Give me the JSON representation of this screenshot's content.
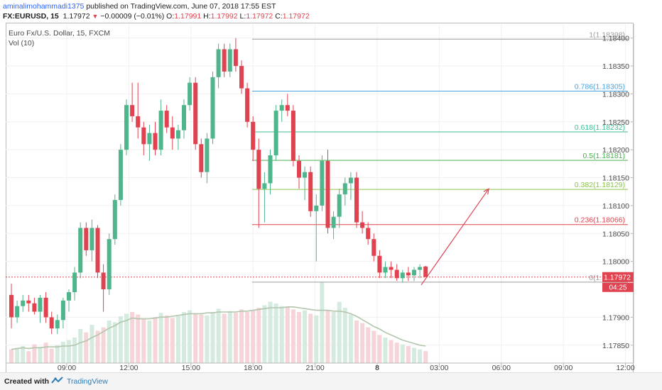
{
  "header": {
    "author": "aminalimohammadi1375",
    "published": " published on TradingView.com, June 07, 2018 17:55 EST",
    "symbol": "FX:EURUSD, 15",
    "last": "1.17972",
    "change": "−0.00009 (−0.01%)",
    "o_label": "O:",
    "o_val": "1.17991",
    "h_label": "H:",
    "h_val": "1.17992",
    "l_label": "L:",
    "l_val": "1.17972",
    "c_label": "C:",
    "c_val": "1.17972"
  },
  "legend": {
    "title": "Euro Fx/U.S. Dollar, 15, FXCM",
    "indicator": "Vol (10)"
  },
  "footer": {
    "created_with": "Created with",
    "brand": "TradingView"
  },
  "colors": {
    "up": "#4fb58a",
    "down": "#e0424f",
    "vol_up": "#d6ebdf",
    "vol_down": "#f6d5d8",
    "vol_ma": "#b3c5ad",
    "price_line": "#e0424f",
    "arrow": "#e0424f",
    "axis_text": "#4a4a4a",
    "grid": "#f0f0f0"
  },
  "chart_data": {
    "type": "candlestick",
    "title": "Euro Fx/U.S. Dollar, 15, FXCM",
    "y_axis": {
      "range": [
        1.17818,
        1.18425
      ],
      "ticks": [
        "1.18400",
        "1.18350",
        "1.18300",
        "1.18250",
        "1.18200",
        "1.18150",
        "1.18100",
        "1.18050",
        "1.18000",
        "1.17900",
        "1.17850"
      ]
    },
    "x_axis": {
      "ticks": [
        "09:00",
        "12:00",
        "15:00",
        "18:00",
        "21:00",
        "8",
        "03:00",
        "06:00",
        "09:00",
        "12:00"
      ]
    },
    "current_price": {
      "label": "1.17972",
      "value": 1.17972,
      "countdown": "04:25"
    },
    "fibonacci": [
      {
        "ratio": "1",
        "price": "1.18398",
        "label": "1(1.18398)",
        "color": "#9e9e9e"
      },
      {
        "ratio": "0.786",
        "price": "1.18305",
        "label": "0.786(1.18305)",
        "color": "#4aa3df"
      },
      {
        "ratio": "0.618",
        "price": "1.18232",
        "label": "0.618(1.18232)",
        "color": "#3fbf95"
      },
      {
        "ratio": "0.5",
        "price": "1.18181",
        "label": "0.5(1.18181)",
        "color": "#4caf50"
      },
      {
        "ratio": "0.382",
        "price": "1.18129",
        "label": "0.382(1.18129)",
        "color": "#8bc34a"
      },
      {
        "ratio": "0.236",
        "price": "1.18066",
        "label": "0.236(1.18066)",
        "color": "#e0424f"
      },
      {
        "ratio": "0",
        "price": "1.17963",
        "label": "0(1.17963)",
        "color": "#9e9e9e"
      }
    ],
    "candles": [
      [
        1.1794,
        1.1796,
        1.1788,
        1.179
      ],
      [
        1.179,
        1.1793,
        1.1789,
        1.1792
      ],
      [
        1.1792,
        1.1794,
        1.1791,
        1.1793
      ],
      [
        1.1793,
        1.1794,
        1.1791,
        1.17925
      ],
      [
        1.17925,
        1.17935,
        1.17905,
        1.1791
      ],
      [
        1.1791,
        1.1794,
        1.1789,
        1.17935
      ],
      [
        1.17935,
        1.17945,
        1.1789,
        1.179
      ],
      [
        1.179,
        1.1791,
        1.1787,
        1.1788
      ],
      [
        1.1788,
        1.17905,
        1.1787,
        1.17895
      ],
      [
        1.17895,
        1.17935,
        1.1788,
        1.1793
      ],
      [
        1.1793,
        1.1795,
        1.1791,
        1.17945
      ],
      [
        1.17945,
        1.1799,
        1.1793,
        1.1798
      ],
      [
        1.1798,
        1.1807,
        1.1797,
        1.1806
      ],
      [
        1.1806,
        1.1807,
        1.1801,
        1.1802
      ],
      [
        1.1802,
        1.18075,
        1.18,
        1.1806
      ],
      [
        1.1806,
        1.18065,
        1.1797,
        1.1798
      ],
      [
        1.1798,
        1.17995,
        1.1791,
        1.1795
      ],
      [
        1.1795,
        1.1805,
        1.1794,
        1.1804
      ],
      [
        1.1804,
        1.1812,
        1.1803,
        1.1811
      ],
      [
        1.1811,
        1.1821,
        1.181,
        1.182
      ],
      [
        1.182,
        1.1829,
        1.1819,
        1.1828
      ],
      [
        1.1828,
        1.1832,
        1.1825,
        1.1826
      ],
      [
        1.1826,
        1.1832,
        1.1822,
        1.1824
      ],
      [
        1.1824,
        1.1825,
        1.1819,
        1.1821
      ],
      [
        1.1821,
        1.18245,
        1.1818,
        1.1823
      ],
      [
        1.1823,
        1.1825,
        1.1819,
        1.182
      ],
      [
        1.182,
        1.1829,
        1.1819,
        1.1827
      ],
      [
        1.1827,
        1.1828,
        1.1823,
        1.1824
      ],
      [
        1.1824,
        1.1826,
        1.182,
        1.1822
      ],
      [
        1.1822,
        1.18245,
        1.182,
        1.18235
      ],
      [
        1.18235,
        1.1829,
        1.1822,
        1.1828
      ],
      [
        1.1828,
        1.1833,
        1.1827,
        1.1832
      ],
      [
        1.1832,
        1.1833,
        1.182,
        1.1821
      ],
      [
        1.1821,
        1.1822,
        1.1815,
        1.1816
      ],
      [
        1.1816,
        1.1823,
        1.1814,
        1.1822
      ],
      [
        1.1822,
        1.1834,
        1.1821,
        1.1833
      ],
      [
        1.1833,
        1.1839,
        1.1831,
        1.1838
      ],
      [
        1.1838,
        1.1839,
        1.1833,
        1.1834
      ],
      [
        1.1834,
        1.1839,
        1.1833,
        1.1838
      ],
      [
        1.1838,
        1.184,
        1.1834,
        1.1835
      ],
      [
        1.1835,
        1.1836,
        1.183,
        1.1831
      ],
      [
        1.1831,
        1.1832,
        1.1824,
        1.1825
      ],
      [
        1.1825,
        1.1826,
        1.1818,
        1.182
      ],
      [
        1.182,
        1.1822,
        1.1806,
        1.1813
      ],
      [
        1.1813,
        1.1816,
        1.1807,
        1.1814
      ],
      [
        1.1814,
        1.182,
        1.1812,
        1.1819
      ],
      [
        1.1819,
        1.1828,
        1.1818,
        1.1827
      ],
      [
        1.1827,
        1.1829,
        1.1825,
        1.1828
      ],
      [
        1.1828,
        1.183,
        1.1826,
        1.1827
      ],
      [
        1.1827,
        1.1828,
        1.1817,
        1.1818
      ],
      [
        1.1818,
        1.1819,
        1.1813,
        1.1815
      ],
      [
        1.1815,
        1.1817,
        1.1811,
        1.1816
      ],
      [
        1.1816,
        1.1817,
        1.1808,
        1.1809
      ],
      [
        1.1809,
        1.1812,
        1.18,
        1.181
      ],
      [
        1.181,
        1.1819,
        1.1809,
        1.1818
      ],
      [
        1.1818,
        1.182,
        1.1805,
        1.1806
      ],
      [
        1.1806,
        1.1809,
        1.1804,
        1.1808
      ],
      [
        1.1808,
        1.1813,
        1.1806,
        1.1812
      ],
      [
        1.1812,
        1.1815,
        1.181,
        1.1814
      ],
      [
        1.1814,
        1.1816,
        1.1811,
        1.1815
      ],
      [
        1.1815,
        1.1816,
        1.1806,
        1.1807
      ],
      [
        1.1807,
        1.1809,
        1.1805,
        1.1806
      ],
      [
        1.1806,
        1.1807,
        1.1803,
        1.1804
      ],
      [
        1.1804,
        1.1805,
        1.18,
        1.1801
      ],
      [
        1.1801,
        1.1802,
        1.1797,
        1.1798
      ],
      [
        1.1798,
        1.18,
        1.1797,
        1.1799
      ],
      [
        1.1799,
        1.18,
        1.1797,
        1.17985
      ],
      [
        1.17985,
        1.17995,
        1.17965,
        1.1797
      ],
      [
        1.1797,
        1.17985,
        1.17962,
        1.1798
      ],
      [
        1.1798,
        1.1799,
        1.17965,
        1.17975
      ],
      [
        1.17975,
        1.1799,
        1.17965,
        1.17985
      ],
      [
        1.17985,
        1.17995,
        1.1797,
        1.1799
      ],
      [
        1.17991,
        1.17992,
        1.17972,
        1.17972
      ]
    ],
    "volumes": [
      0.16,
      0.18,
      0.2,
      0.14,
      0.22,
      0.19,
      0.24,
      0.17,
      0.21,
      0.25,
      0.27,
      0.3,
      0.4,
      0.36,
      0.45,
      0.38,
      0.42,
      0.5,
      0.48,
      0.55,
      0.58,
      0.6,
      0.57,
      0.52,
      0.5,
      0.54,
      0.59,
      0.56,
      0.53,
      0.55,
      0.6,
      0.62,
      0.58,
      0.57,
      0.56,
      0.6,
      0.64,
      0.58,
      0.61,
      0.59,
      0.63,
      0.6,
      0.62,
      0.65,
      0.68,
      0.72,
      0.7,
      0.67,
      0.66,
      0.63,
      0.6,
      0.62,
      0.58,
      0.56,
      0.95,
      0.62,
      0.6,
      0.72,
      0.65,
      0.57,
      0.5,
      0.47,
      0.42,
      0.38,
      0.33,
      0.3,
      0.27,
      0.24,
      0.22,
      0.2,
      0.18,
      0.16,
      0.14
    ],
    "volume_ma": [
      0.16,
      0.17,
      0.18,
      0.17,
      0.18,
      0.18,
      0.19,
      0.19,
      0.19,
      0.2,
      0.2,
      0.21,
      0.24,
      0.26,
      0.3,
      0.33,
      0.37,
      0.41,
      0.44,
      0.48,
      0.5,
      0.53,
      0.52,
      0.52,
      0.52,
      0.53,
      0.54,
      0.54,
      0.55,
      0.56,
      0.57,
      0.58,
      0.58,
      0.58,
      0.59,
      0.59,
      0.6,
      0.6,
      0.6,
      0.6,
      0.61,
      0.61,
      0.62,
      0.63,
      0.64,
      0.65,
      0.65,
      0.65,
      0.66,
      0.66,
      0.65,
      0.64,
      0.63,
      0.62,
      0.62,
      0.62,
      0.61,
      0.61,
      0.6,
      0.58,
      0.55,
      0.51,
      0.47,
      0.43,
      0.4,
      0.36,
      0.33,
      0.3,
      0.27,
      0.25,
      0.23,
      0.21,
      0.2
    ]
  }
}
